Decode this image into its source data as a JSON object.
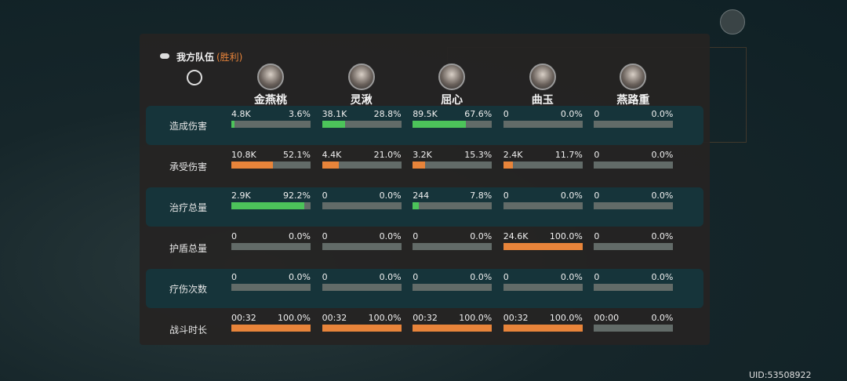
{
  "header": {
    "title": "我方队伍",
    "result": "(胜利)"
  },
  "members": [
    "金燕桃",
    "灵湫",
    "屈心",
    "曲玉",
    "燕路重"
  ],
  "rows": [
    {
      "label": "造成伤害",
      "color": "#4cc35a",
      "cells": [
        {
          "text": "4.8K",
          "percent": 3.6,
          "percent_label": "3.6%"
        },
        {
          "text": "38.1K",
          "percent": 28.8,
          "percent_label": "28.8%"
        },
        {
          "text": "89.5K",
          "percent": 67.6,
          "percent_label": "67.6%"
        },
        {
          "text": "0",
          "percent": 0,
          "percent_label": "0.0%"
        },
        {
          "text": "0",
          "percent": 0,
          "percent_label": "0.0%"
        }
      ]
    },
    {
      "label": "承受伤害",
      "color": "#e8843a",
      "cells": [
        {
          "text": "10.8K",
          "percent": 52.1,
          "percent_label": "52.1%"
        },
        {
          "text": "4.4K",
          "percent": 21.0,
          "percent_label": "21.0%"
        },
        {
          "text": "3.2K",
          "percent": 15.3,
          "percent_label": "15.3%"
        },
        {
          "text": "2.4K",
          "percent": 11.7,
          "percent_label": "11.7%"
        },
        {
          "text": "0",
          "percent": 0,
          "percent_label": "0.0%"
        }
      ]
    },
    {
      "label": "治疗总量",
      "color": "#4cc35a",
      "cells": [
        {
          "text": "2.9K",
          "percent": 92.2,
          "percent_label": "92.2%"
        },
        {
          "text": "0",
          "percent": 0,
          "percent_label": "0.0%"
        },
        {
          "text": "244",
          "percent": 7.8,
          "percent_label": "7.8%"
        },
        {
          "text": "0",
          "percent": 0,
          "percent_label": "0.0%"
        },
        {
          "text": "0",
          "percent": 0,
          "percent_label": "0.0%"
        }
      ]
    },
    {
      "label": "护盾总量",
      "color": "#e8843a",
      "cells": [
        {
          "text": "0",
          "percent": 0,
          "percent_label": "0.0%"
        },
        {
          "text": "0",
          "percent": 0,
          "percent_label": "0.0%"
        },
        {
          "text": "0",
          "percent": 0,
          "percent_label": "0.0%"
        },
        {
          "text": "24.6K",
          "percent": 100.0,
          "percent_label": "100.0%"
        },
        {
          "text": "0",
          "percent": 0,
          "percent_label": "0.0%"
        }
      ]
    },
    {
      "label": "疗伤次数",
      "color": "#4cc35a",
      "cells": [
        {
          "text": "0",
          "percent": 0,
          "percent_label": "0.0%"
        },
        {
          "text": "0",
          "percent": 0,
          "percent_label": "0.0%"
        },
        {
          "text": "0",
          "percent": 0,
          "percent_label": "0.0%"
        },
        {
          "text": "0",
          "percent": 0,
          "percent_label": "0.0%"
        },
        {
          "text": "0",
          "percent": 0,
          "percent_label": "0.0%"
        }
      ]
    },
    {
      "label": "战斗时长",
      "color": "#e8843a",
      "cells": [
        {
          "text": "00:32",
          "percent": 100.0,
          "percent_label": "100.0%"
        },
        {
          "text": "00:32",
          "percent": 100.0,
          "percent_label": "100.0%"
        },
        {
          "text": "00:32",
          "percent": 100.0,
          "percent_label": "100.0%"
        },
        {
          "text": "00:32",
          "percent": 100.0,
          "percent_label": "100.0%"
        },
        {
          "text": "00:00",
          "percent": 0,
          "percent_label": "0.0%"
        }
      ]
    }
  ],
  "uid": "UID:53508922"
}
